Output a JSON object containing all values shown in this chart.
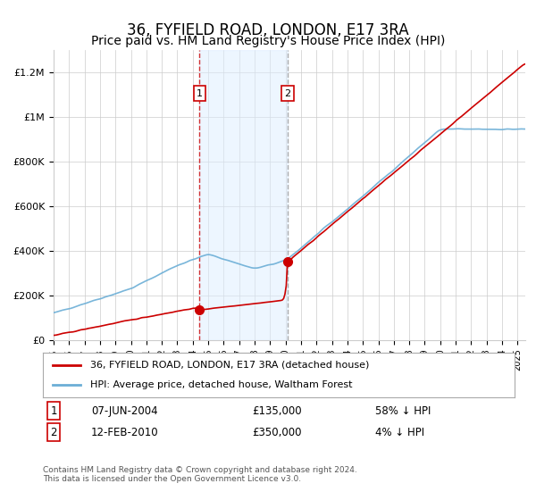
{
  "title": "36, FYFIELD ROAD, LONDON, E17 3RA",
  "subtitle": "Price paid vs. HM Land Registry's House Price Index (HPI)",
  "title_fontsize": 12,
  "subtitle_fontsize": 10,
  "xlabel": "",
  "ylabel": "",
  "ylim": [
    0,
    1300000
  ],
  "xlim_start": 1995.0,
  "xlim_end": 2025.5,
  "yticks": [
    0,
    200000,
    400000,
    600000,
    800000,
    1000000,
    1200000
  ],
  "ytick_labels": [
    "£0",
    "£200K",
    "£400K",
    "£600K",
    "£800K",
    "£1M",
    "£1.2M"
  ],
  "xtick_years": [
    1995,
    1996,
    1997,
    1998,
    1999,
    2000,
    2001,
    2002,
    2003,
    2004,
    2005,
    2006,
    2007,
    2008,
    2009,
    2010,
    2011,
    2012,
    2013,
    2014,
    2015,
    2016,
    2017,
    2018,
    2019,
    2020,
    2021,
    2022,
    2023,
    2024,
    2025
  ],
  "hpi_color": "#6baed6",
  "price_color": "#cc0000",
  "marker_color": "#cc0000",
  "shade_color": "#ddeeff",
  "shade_alpha": 0.5,
  "grid_color": "#cccccc",
  "background_color": "#ffffff",
  "legend_line1": "36, FYFIELD ROAD, LONDON, E17 3RA (detached house)",
  "legend_line2": "HPI: Average price, detached house, Waltham Forest",
  "sale1_x": 2004.44,
  "sale1_y": 135000,
  "sale1_label": "1",
  "sale2_x": 2010.12,
  "sale2_y": 350000,
  "sale2_label": "2",
  "shade_x1": 2004.44,
  "shade_x2": 2010.12,
  "note1_label": "1",
  "note1_date": "07-JUN-2004",
  "note1_price": "£135,000",
  "note1_pct": "58% ↓ HPI",
  "note2_label": "2",
  "note2_date": "12-FEB-2010",
  "note2_price": "£350,000",
  "note2_pct": "4% ↓ HPI",
  "footer": "Contains HM Land Registry data © Crown copyright and database right 2024.\nThis data is licensed under the Open Government Licence v3.0."
}
